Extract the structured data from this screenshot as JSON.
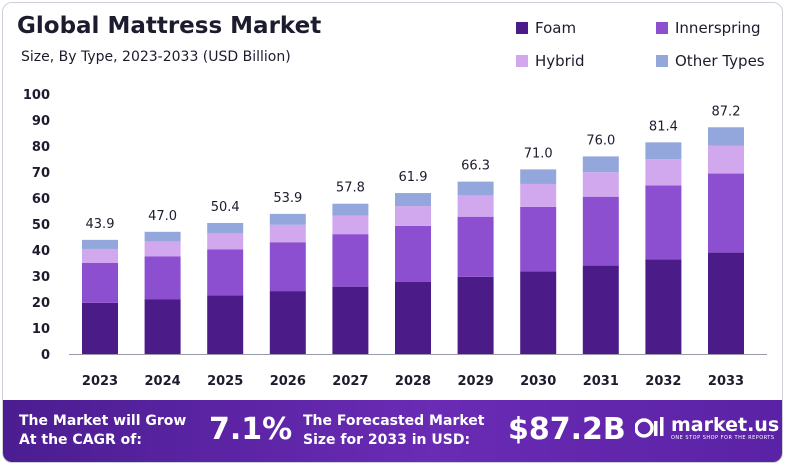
{
  "title": "Global Mattress Market",
  "subtitle": "Size, By Type, 2023-2033 (USD Billion)",
  "chart_data": {
    "type": "bar",
    "stacked": true,
    "categories": [
      "2023",
      "2024",
      "2025",
      "2026",
      "2027",
      "2028",
      "2029",
      "2030",
      "2031",
      "2032",
      "2033"
    ],
    "totals": [
      43.9,
      47.0,
      50.4,
      53.9,
      57.8,
      61.9,
      66.3,
      71.0,
      76.0,
      81.4,
      87.2
    ],
    "total_labels": [
      "43.9",
      "47.0",
      "50.4",
      "53.9",
      "57.8",
      "61.9",
      "66.3",
      "71.0",
      "76.0",
      "81.4",
      "87.2"
    ],
    "series": [
      {
        "name": "Foam",
        "color": "#4b1b88",
        "values": [
          19.7,
          21.1,
          22.6,
          24.2,
          25.9,
          27.7,
          29.7,
          31.8,
          34.0,
          36.4,
          39.0
        ]
      },
      {
        "name": "Innerspring",
        "color": "#8b4fd0",
        "values": [
          15.3,
          16.4,
          17.6,
          18.8,
          20.2,
          21.6,
          23.1,
          24.8,
          26.5,
          28.4,
          30.4
        ]
      },
      {
        "name": "Hybrid",
        "color": "#d1a7ee",
        "values": [
          5.4,
          5.8,
          6.2,
          6.7,
          7.1,
          7.6,
          8.2,
          8.8,
          9.4,
          10.1,
          10.8
        ]
      },
      {
        "name": "Other Types",
        "color": "#93a7dc",
        "values": [
          3.5,
          3.7,
          4.0,
          4.2,
          4.6,
          5.0,
          5.3,
          5.6,
          6.1,
          6.5,
          7.0
        ]
      }
    ],
    "ylim": [
      0,
      100
    ],
    "yticks": [
      "0",
      "10",
      "20",
      "30",
      "40",
      "50",
      "60",
      "70",
      "80",
      "90",
      "100"
    ],
    "legend_position": "top-right",
    "grid": false
  },
  "legend": [
    {
      "label": "Foam",
      "color": "#4b1b88"
    },
    {
      "label": "Innerspring",
      "color": "#8b4fd0"
    },
    {
      "label": "Hybrid",
      "color": "#d1a7ee"
    },
    {
      "label": "Other Types",
      "color": "#93a7dc"
    }
  ],
  "footer": {
    "cagr_label_line1": "The Market will Grow",
    "cagr_label_line2": "At the CAGR of:",
    "cagr_value": "7.1%",
    "forecast_label_line1": "The Forecasted Market",
    "forecast_label_line2": "Size for 2033 in USD:",
    "forecast_value": "$87.2B",
    "brand_name": "market.us",
    "brand_tagline": "ONE STOP SHOP FOR THE REPORTS"
  }
}
